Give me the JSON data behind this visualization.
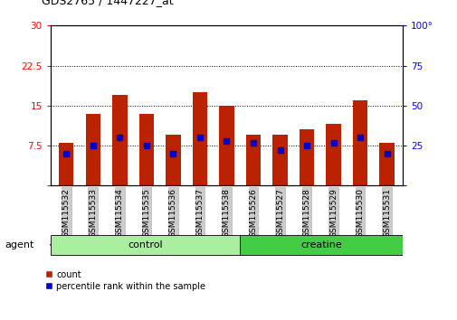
{
  "title": "GDS2765 / 1447227_at",
  "categories": [
    "GSM115532",
    "GSM115533",
    "GSM115534",
    "GSM115535",
    "GSM115536",
    "GSM115537",
    "GSM115538",
    "GSM115526",
    "GSM115527",
    "GSM115528",
    "GSM115529",
    "GSM115530",
    "GSM115531"
  ],
  "count_values": [
    8.0,
    13.5,
    17.0,
    13.5,
    9.5,
    17.5,
    15.0,
    9.5,
    9.5,
    10.5,
    11.5,
    16.0,
    8.0
  ],
  "percentile_values": [
    20,
    25,
    30,
    25,
    20,
    30,
    28,
    27,
    22,
    25,
    27,
    30,
    20
  ],
  "groups": [
    {
      "label": "control",
      "start": 0,
      "end": 7,
      "color": "#aaeea0"
    },
    {
      "label": "creatine",
      "start": 7,
      "end": 13,
      "color": "#44cc44"
    }
  ],
  "ylim_left": [
    0,
    30
  ],
  "ylim_right": [
    0,
    100
  ],
  "yticks_left": [
    0,
    7.5,
    15,
    22.5,
    30
  ],
  "yticks_right": [
    0,
    25,
    50,
    75,
    100
  ],
  "bar_color": "#BB2200",
  "percentile_color": "#0000CC",
  "bar_width": 0.55,
  "agent_label": "agent",
  "legend_count": "count",
  "legend_percentile": "percentile rank within the sample",
  "background_color": "#ffffff",
  "tick_bg_color": "#cccccc"
}
